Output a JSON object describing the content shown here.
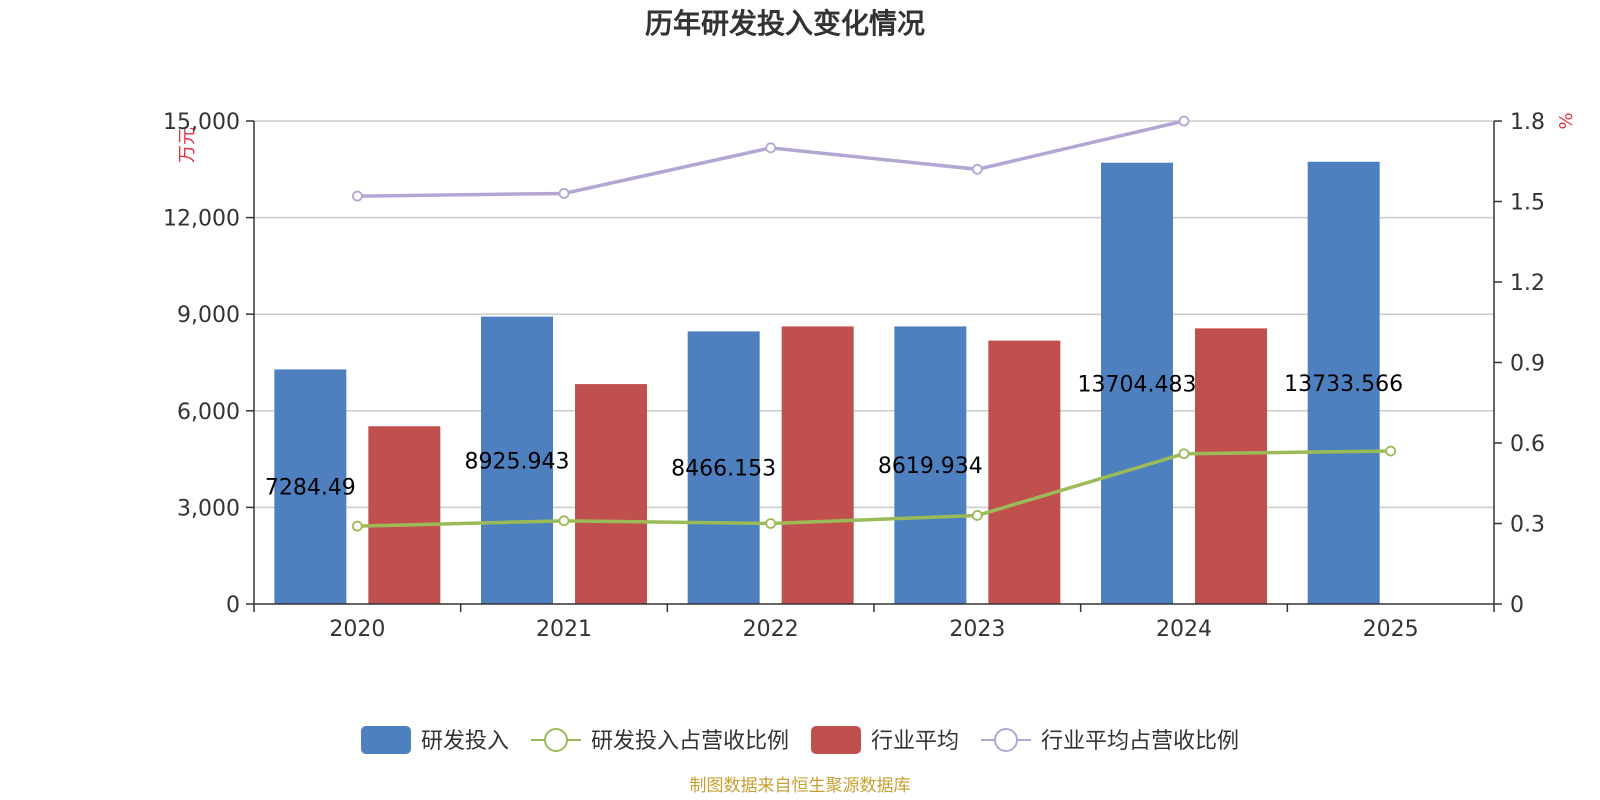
{
  "chart_data": {
    "type": "bar",
    "title": "历年研发投入变化情况",
    "categories": [
      "2020",
      "2021",
      "2022",
      "2023",
      "2024",
      "2025"
    ],
    "y_left": {
      "unit": "万元",
      "range": [
        0,
        15000
      ],
      "ticks": [
        "0",
        "3,000",
        "6,000",
        "9,000",
        "12,000",
        "15,000"
      ]
    },
    "y_right": {
      "unit": "%",
      "range": [
        0,
        1.8
      ],
      "ticks": [
        "0",
        "0.3",
        "0.6",
        "0.9",
        "1.2",
        "1.5",
        "1.8"
      ]
    },
    "grid": true,
    "legend_position": "bottom",
    "series": [
      {
        "name": "研发投入",
        "kind": "bar",
        "axis": "left",
        "color": "#4e80c0",
        "values": [
          7284.49,
          8925.943,
          8466.153,
          8619.934,
          13704.483,
          13733.566
        ],
        "labels": [
          "7284.49",
          "8925.943",
          "8466.153",
          "8619.934",
          "13704.483",
          "13733.566"
        ]
      },
      {
        "name": "行业平均",
        "kind": "bar",
        "axis": "left",
        "color": "#c0504d",
        "values": [
          5520,
          6830,
          8620,
          8180,
          8560,
          null
        ]
      },
      {
        "name": "研发投入占营收比例",
        "kind": "line",
        "axis": "right",
        "color": "#9bbb59",
        "values": [
          0.29,
          0.31,
          0.3,
          0.33,
          0.56,
          0.57
        ]
      },
      {
        "name": "行业平均占营收比例",
        "kind": "line",
        "axis": "right",
        "color": "#b3a6d3",
        "values": [
          1.52,
          1.53,
          1.7,
          1.62,
          1.8,
          null
        ]
      }
    ],
    "source": "制图数据来自恒生聚源数据库"
  }
}
